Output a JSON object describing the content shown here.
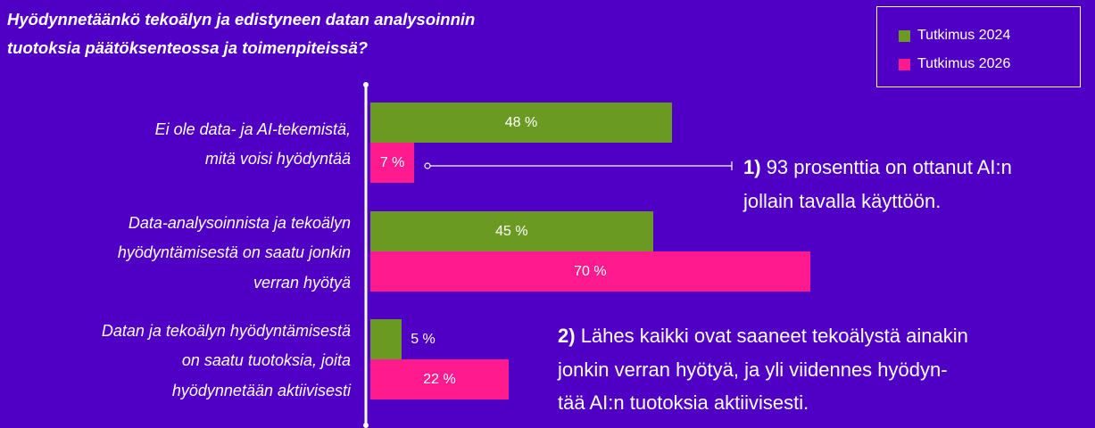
{
  "chart_data": {
    "type": "bar",
    "orientation": "horizontal",
    "title": "Hyödynnetäänkö tekoälyn ja edistyneen datan analysoinnin\ntuotoksia päätöksenteossa ja toimenpiteissä?",
    "categories": [
      "Ei ole data- ja AI-tekemistä,\nmitä voisi hyödyntää",
      "Data-analysoinnista ja tekoälyn\nhyödyntämisestä on saatu jonkin\nverran hyötyä",
      "Datan ja tekoälyn hyödyntämisestä\non saatu tuotoksia, joita\nhyödynnetään aktiivisesti"
    ],
    "series": [
      {
        "name": "Tutkimus 2024",
        "color": "#6a9a22",
        "values": [
          48,
          45,
          5
        ],
        "value_labels": [
          "48 %",
          "45 %",
          "5 %"
        ]
      },
      {
        "name": "Tutkimus 2026",
        "color": "#ff1b8d",
        "values": [
          7,
          70,
          22
        ],
        "value_labels": [
          "7 %",
          "70 %",
          "22 %"
        ]
      }
    ],
    "xlim": [
      0,
      100
    ],
    "legend": "top-right",
    "annotations": [
      {
        "number": "1)",
        "text": "93 prosenttia on ottanut AI:n\njollain tavalla käyttöön."
      },
      {
        "number": "2)",
        "text": "Lähes kaikki ovat saaneet tekoälystä ainakin\njonkin verran hyötyä, ja yli viidennes hyödyn-\ntää AI:n tuotoksia aktiivisesti."
      }
    ]
  }
}
